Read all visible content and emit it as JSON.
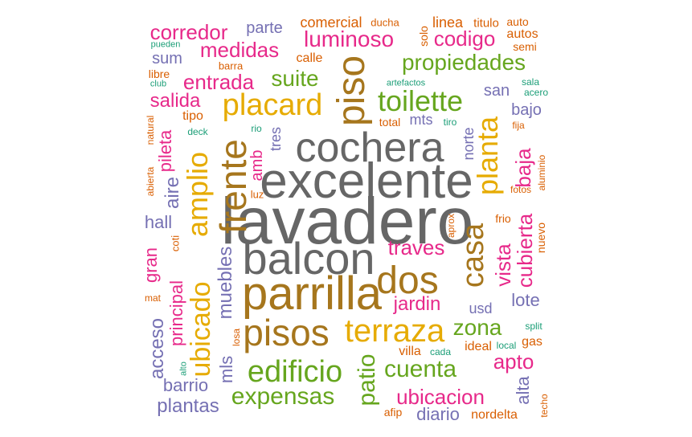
{
  "wordcloud": {
    "words": [
      {
        "text": "lavadero",
        "color": "#666666",
        "rot": 0
      },
      {
        "text": "excelente",
        "color": "#666666",
        "rot": 0
      },
      {
        "text": "cochera",
        "color": "#666666",
        "rot": 0
      },
      {
        "text": "balcon",
        "color": "#666666",
        "rot": 0
      },
      {
        "text": "parrilla",
        "color": "#a6761d",
        "rot": 0
      },
      {
        "text": "pisos",
        "color": "#a6761d",
        "rot": 0
      },
      {
        "text": "dos",
        "color": "#a6761d",
        "rot": 0
      },
      {
        "text": "frente",
        "color": "#a6761d",
        "rot": 90
      },
      {
        "text": "piso",
        "color": "#a6761d",
        "rot": 90
      },
      {
        "text": "casa",
        "color": "#a6761d",
        "rot": 90
      },
      {
        "text": "placard",
        "color": "#e6ab02",
        "rot": 0
      },
      {
        "text": "terraza",
        "color": "#e6ab02",
        "rot": 0
      },
      {
        "text": "amplio",
        "color": "#e6ab02",
        "rot": 90
      },
      {
        "text": "planta",
        "color": "#e6ab02",
        "rot": 90
      },
      {
        "text": "ubicado",
        "color": "#e6ab02",
        "rot": 90
      },
      {
        "text": "edificio",
        "color": "#66a61e",
        "rot": 0
      },
      {
        "text": "toilette",
        "color": "#66a61e",
        "rot": 0
      },
      {
        "text": "cuenta",
        "color": "#66a61e",
        "rot": 0
      },
      {
        "text": "expensas",
        "color": "#66a61e",
        "rot": 0
      },
      {
        "text": "propiedades",
        "color": "#66a61e",
        "rot": 0
      },
      {
        "text": "suite",
        "color": "#66a61e",
        "rot": 0
      },
      {
        "text": "zona",
        "color": "#66a61e",
        "rot": 0
      },
      {
        "text": "patio",
        "color": "#66a61e",
        "rot": 90
      },
      {
        "text": "luminoso",
        "color": "#e7298a",
        "rot": 0
      },
      {
        "text": "ubicacion",
        "color": "#e7298a",
        "rot": 0
      },
      {
        "text": "traves",
        "color": "#e7298a",
        "rot": 0
      },
      {
        "text": "codigo",
        "color": "#e7298a",
        "rot": 0
      },
      {
        "text": "entrada",
        "color": "#e7298a",
        "rot": 0
      },
      {
        "text": "corredor",
        "color": "#e7298a",
        "rot": 0
      },
      {
        "text": "medidas",
        "color": "#e7298a",
        "rot": 0
      },
      {
        "text": "salida",
        "color": "#e7298a",
        "rot": 0
      },
      {
        "text": "jardin",
        "color": "#e7298a",
        "rot": 0
      },
      {
        "text": "apto",
        "color": "#e7298a",
        "rot": 0
      },
      {
        "text": "vista",
        "color": "#e7298a",
        "rot": 90
      },
      {
        "text": "cubierta",
        "color": "#e7298a",
        "rot": 90
      },
      {
        "text": "baja",
        "color": "#e7298a",
        "rot": 90
      },
      {
        "text": "pileta",
        "color": "#e7298a",
        "rot": 90
      },
      {
        "text": "amb",
        "color": "#e7298a",
        "rot": 90
      },
      {
        "text": "gran",
        "color": "#e7298a",
        "rot": 90
      },
      {
        "text": "principal",
        "color": "#e7298a",
        "rot": 90
      },
      {
        "text": "muebles",
        "color": "#7570b3",
        "rot": 90
      },
      {
        "text": "acceso",
        "color": "#7570b3",
        "rot": 90
      },
      {
        "text": "mls",
        "color": "#7570b3",
        "rot": 90
      },
      {
        "text": "aire",
        "color": "#7570b3",
        "rot": 90
      },
      {
        "text": "alta",
        "color": "#7570b3",
        "rot": 90
      },
      {
        "text": "tres",
        "color": "#7570b3",
        "rot": 90
      },
      {
        "text": "norte",
        "color": "#7570b3",
        "rot": 90
      },
      {
        "text": "plantas",
        "color": "#7570b3",
        "rot": 0
      },
      {
        "text": "barrio",
        "color": "#7570b3",
        "rot": 0
      },
      {
        "text": "diario",
        "color": "#7570b3",
        "rot": 0
      },
      {
        "text": "lote",
        "color": "#7570b3",
        "rot": 0
      },
      {
        "text": "hall",
        "color": "#7570b3",
        "rot": 0
      },
      {
        "text": "sum",
        "color": "#7570b3",
        "rot": 0
      },
      {
        "text": "parte",
        "color": "#7570b3",
        "rot": 0
      },
      {
        "text": "san",
        "color": "#7570b3",
        "rot": 0
      },
      {
        "text": "bajo",
        "color": "#7570b3",
        "rot": 0
      },
      {
        "text": "mts",
        "color": "#7570b3",
        "rot": 0
      },
      {
        "text": "usd",
        "color": "#7570b3",
        "rot": 0
      },
      {
        "text": "comercial",
        "color": "#d95f02",
        "rot": 0
      },
      {
        "text": "calle",
        "color": "#d95f02",
        "rot": 0
      },
      {
        "text": "tipo",
        "color": "#d95f02",
        "rot": 0
      },
      {
        "text": "villa",
        "color": "#d95f02",
        "rot": 0
      },
      {
        "text": "ideal",
        "color": "#d95f02",
        "rot": 0
      },
      {
        "text": "gas",
        "color": "#d95f02",
        "rot": 0
      },
      {
        "text": "nordelta",
        "color": "#d95f02",
        "rot": 0
      },
      {
        "text": "afip",
        "color": "#d95f02",
        "rot": 0
      },
      {
        "text": "linea",
        "color": "#d95f02",
        "rot": 0
      },
      {
        "text": "titulo",
        "color": "#d95f02",
        "rot": 0
      },
      {
        "text": "auto",
        "color": "#d95f02",
        "rot": 0
      },
      {
        "text": "autos",
        "color": "#d95f02",
        "rot": 0
      },
      {
        "text": "semi",
        "color": "#d95f02",
        "rot": 0
      },
      {
        "text": "ducha",
        "color": "#d95f02",
        "rot": 0
      },
      {
        "text": "barra",
        "color": "#d95f02",
        "rot": 0
      },
      {
        "text": "libre",
        "color": "#d95f02",
        "rot": 0
      },
      {
        "text": "total",
        "color": "#d95f02",
        "rot": 0
      },
      {
        "text": "fija",
        "color": "#d95f02",
        "rot": 0
      },
      {
        "text": "fotos",
        "color": "#d95f02",
        "rot": 0
      },
      {
        "text": "frio",
        "color": "#d95f02",
        "rot": 0
      },
      {
        "text": "luz",
        "color": "#d95f02",
        "rot": 0
      },
      {
        "text": "mat",
        "color": "#d95f02",
        "rot": 0
      },
      {
        "text": "solo",
        "color": "#d95f02",
        "rot": 90
      },
      {
        "text": "nuevo",
        "color": "#d95f02",
        "rot": 90
      },
      {
        "text": "aluminio",
        "color": "#d95f02",
        "rot": 90
      },
      {
        "text": "natural",
        "color": "#d95f02",
        "rot": 90
      },
      {
        "text": "abierta",
        "color": "#d95f02",
        "rot": 90
      },
      {
        "text": "coti",
        "color": "#d95f02",
        "rot": 90
      },
      {
        "text": "aprox",
        "color": "#d95f02",
        "rot": 90
      },
      {
        "text": "losa",
        "color": "#d95f02",
        "rot": 90
      },
      {
        "text": "techo",
        "color": "#d95f02",
        "rot": 90
      },
      {
        "text": "pueden",
        "color": "#1b9e77",
        "rot": 0
      },
      {
        "text": "club",
        "color": "#1b9e77",
        "rot": 0
      },
      {
        "text": "deck",
        "color": "#1b9e77",
        "rot": 0
      },
      {
        "text": "rio",
        "color": "#1b9e77",
        "rot": 0
      },
      {
        "text": "tiro",
        "color": "#1b9e77",
        "rot": 0
      },
      {
        "text": "artefactos",
        "color": "#1b9e77",
        "rot": 0
      },
      {
        "text": "sala",
        "color": "#1b9e77",
        "rot": 0
      },
      {
        "text": "acero",
        "color": "#1b9e77",
        "rot": 0
      },
      {
        "text": "split",
        "color": "#1b9e77",
        "rot": 0
      },
      {
        "text": "local",
        "color": "#1b9e77",
        "rot": 0
      },
      {
        "text": "cada",
        "color": "#1b9e77",
        "rot": 0
      },
      {
        "text": "alto",
        "color": "#1b9e77",
        "rot": 90
      }
    ]
  }
}
